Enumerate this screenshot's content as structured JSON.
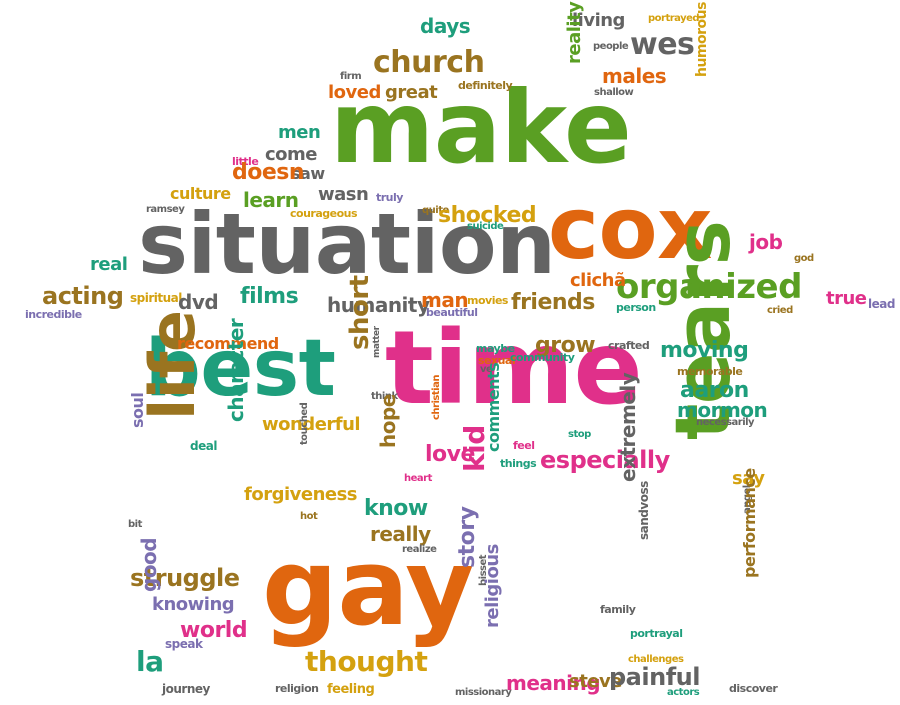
{
  "colors": {
    "green": "#5a9f23",
    "orange": "#e0660f",
    "gray": "#636363",
    "teal": "#1e9e7c",
    "magenta": "#e0308a",
    "gold": "#d4a10f",
    "brown": "#9a7420",
    "purple": "#7b6fb0",
    "dark": "#4a4a4a"
  },
  "words": [
    {
      "text": "make",
      "color": "green"
    },
    {
      "text": "situation",
      "color": "gray"
    },
    {
      "text": "cox",
      "color": "orange"
    },
    {
      "text": "time",
      "color": "magenta"
    },
    {
      "text": "best",
      "color": "teal"
    },
    {
      "text": "gay",
      "color": "orange"
    },
    {
      "text": "tears",
      "color": "green"
    },
    {
      "text": "life",
      "color": "brown"
    },
    {
      "text": "organized",
      "color": "green"
    },
    {
      "text": "church",
      "color": "brown"
    },
    {
      "text": "wes",
      "color": "gray"
    },
    {
      "text": "days",
      "color": "teal"
    },
    {
      "text": "living",
      "color": "gray"
    },
    {
      "text": "portrayed",
      "color": "gold"
    },
    {
      "text": "people",
      "color": "gray"
    },
    {
      "text": "reality",
      "color": "green"
    },
    {
      "text": "males",
      "color": "orange"
    },
    {
      "text": "humorous",
      "color": "gold"
    },
    {
      "text": "shallow",
      "color": "gray"
    },
    {
      "text": "definitely",
      "color": "brown"
    },
    {
      "text": "firm",
      "color": "gray"
    },
    {
      "text": "loved",
      "color": "orange"
    },
    {
      "text": "great",
      "color": "brown"
    },
    {
      "text": "men",
      "color": "teal"
    },
    {
      "text": "come",
      "color": "gray"
    },
    {
      "text": "little",
      "color": "magenta"
    },
    {
      "text": "saw",
      "color": "gray"
    },
    {
      "text": "doesn",
      "color": "orange"
    },
    {
      "text": "culture",
      "color": "gold"
    },
    {
      "text": "learn",
      "color": "green"
    },
    {
      "text": "wasn",
      "color": "gray"
    },
    {
      "text": "truly",
      "color": "purple"
    },
    {
      "text": "quite",
      "color": "brown"
    },
    {
      "text": "ramsey",
      "color": "gray"
    },
    {
      "text": "courageous",
      "color": "gold"
    },
    {
      "text": "shocked",
      "color": "gold"
    },
    {
      "text": "suicide",
      "color": "teal"
    },
    {
      "text": "job",
      "color": "magenta"
    },
    {
      "text": "god",
      "color": "brown"
    },
    {
      "text": "real",
      "color": "teal"
    },
    {
      "text": "clichã",
      "color": "orange"
    },
    {
      "text": "acting",
      "color": "brown"
    },
    {
      "text": "spiritual",
      "color": "gold"
    },
    {
      "text": "dvd",
      "color": "gray"
    },
    {
      "text": "films",
      "color": "teal"
    },
    {
      "text": "humanity",
      "color": "gray"
    },
    {
      "text": "man",
      "color": "orange"
    },
    {
      "text": "movies",
      "color": "gold"
    },
    {
      "text": "friends",
      "color": "brown"
    },
    {
      "text": "beautiful",
      "color": "purple"
    },
    {
      "text": "person",
      "color": "teal"
    },
    {
      "text": "true",
      "color": "magenta"
    },
    {
      "text": "lead",
      "color": "purple"
    },
    {
      "text": "cried",
      "color": "brown"
    },
    {
      "text": "incredible",
      "color": "purple"
    },
    {
      "text": "recommend",
      "color": "orange"
    },
    {
      "text": "short",
      "color": "brown"
    },
    {
      "text": "matter",
      "color": "gray"
    },
    {
      "text": "maybe",
      "color": "teal"
    },
    {
      "text": "grow",
      "color": "brown"
    },
    {
      "text": "crafted",
      "color": "gray"
    },
    {
      "text": "moving",
      "color": "teal"
    },
    {
      "text": "sexual",
      "color": "orange"
    },
    {
      "text": "community",
      "color": "teal"
    },
    {
      "text": "memorable",
      "color": "brown"
    },
    {
      "text": "ve",
      "color": "gray"
    },
    {
      "text": "aaron",
      "color": "teal"
    },
    {
      "text": "think",
      "color": "gray"
    },
    {
      "text": "mormon",
      "color": "teal"
    },
    {
      "text": "necessarily",
      "color": "gray"
    },
    {
      "text": "wonderful",
      "color": "gold"
    },
    {
      "text": "christian",
      "color": "orange"
    },
    {
      "text": "character",
      "color": "teal"
    },
    {
      "text": "soul",
      "color": "purple"
    },
    {
      "text": "deal",
      "color": "teal"
    },
    {
      "text": "touched",
      "color": "gray"
    },
    {
      "text": "hope",
      "color": "brown"
    },
    {
      "text": "love",
      "color": "magenta"
    },
    {
      "text": "stop",
      "color": "teal"
    },
    {
      "text": "feel",
      "color": "magenta"
    },
    {
      "text": "especially",
      "color": "magenta"
    },
    {
      "text": "things",
      "color": "teal"
    },
    {
      "text": "heart",
      "color": "magenta"
    },
    {
      "text": "say",
      "color": "gold"
    },
    {
      "text": "forgiveness",
      "color": "gold"
    },
    {
      "text": "comments",
      "color": "teal"
    },
    {
      "text": "kid",
      "color": "magenta"
    },
    {
      "text": "know",
      "color": "teal"
    },
    {
      "text": "extremely",
      "color": "gray"
    },
    {
      "text": "angel",
      "color": "gray"
    },
    {
      "text": "bit",
      "color": "gray"
    },
    {
      "text": "hot",
      "color": "brown"
    },
    {
      "text": "really",
      "color": "brown"
    },
    {
      "text": "realize",
      "color": "gray"
    },
    {
      "text": "struggle",
      "color": "brown"
    },
    {
      "text": "sandvoss",
      "color": "gray"
    },
    {
      "text": "performance",
      "color": "brown"
    },
    {
      "text": "good",
      "color": "purple"
    },
    {
      "text": "knowing",
      "color": "purple"
    },
    {
      "text": "story",
      "color": "purple"
    },
    {
      "text": "family",
      "color": "gray"
    },
    {
      "text": "world",
      "color": "magenta"
    },
    {
      "text": "bisset",
      "color": "gray"
    },
    {
      "text": "portrayal",
      "color": "teal"
    },
    {
      "text": "speak",
      "color": "purple"
    },
    {
      "text": "religious",
      "color": "purple"
    },
    {
      "text": "la",
      "color": "teal"
    },
    {
      "text": "thought",
      "color": "gold"
    },
    {
      "text": "challenges",
      "color": "gold"
    },
    {
      "text": "journey",
      "color": "gray"
    },
    {
      "text": "religion",
      "color": "gray"
    },
    {
      "text": "feeling",
      "color": "gold"
    },
    {
      "text": "missionary",
      "color": "gray"
    },
    {
      "text": "meaning",
      "color": "magenta"
    },
    {
      "text": "steve",
      "color": "brown"
    },
    {
      "text": "painful",
      "color": "gray"
    },
    {
      "text": "actors",
      "color": "teal"
    },
    {
      "text": "discover",
      "color": "gray"
    },
    {
      "text": "young",
      "color": "gold"
    }
  ]
}
